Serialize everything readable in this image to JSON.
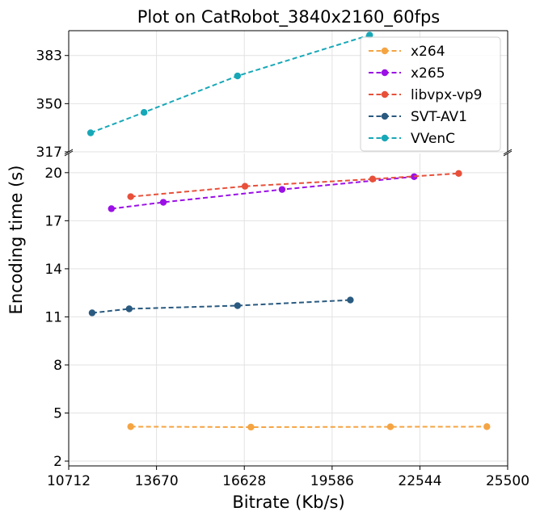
{
  "chart_data": {
    "type": "line",
    "title": "Plot on CatRobot_3840x2160_60fps",
    "xlabel": "Bitrate (Kb/s)",
    "ylabel": "Encoding time (s)",
    "xlim": [
      10712,
      25500
    ],
    "x_ticks": [
      10712,
      13670,
      16628,
      19586,
      22544,
      25500
    ],
    "y_axis_broken": true,
    "ylim_lower": [
      1.7,
      21.2
    ],
    "ylim_upper": [
      317,
      400
    ],
    "y_ticks_lower": [
      2,
      5,
      8,
      11,
      14,
      17,
      20
    ],
    "y_ticks_upper": [
      317,
      350,
      383
    ],
    "grid": true,
    "legend_position": "top-right",
    "series": [
      {
        "name": "x264",
        "color": "#f5a442",
        "x": [
          12800,
          16850,
          21550,
          24800
        ],
        "y": [
          4.15,
          4.12,
          4.14,
          4.15
        ]
      },
      {
        "name": "x265",
        "color": "#9b10e6",
        "x": [
          12150,
          13900,
          17900,
          22350
        ],
        "y": [
          17.75,
          18.15,
          18.95,
          19.75
        ]
      },
      {
        "name": "libvpx-vp9",
        "color": "#e8503a",
        "x": [
          12800,
          16650,
          20950,
          23850
        ],
        "y": [
          18.5,
          19.15,
          19.6,
          19.95
        ]
      },
      {
        "name": "SVT-AV1",
        "color": "#2a5a80",
        "x": [
          11500,
          12750,
          16400,
          20200
        ],
        "y": [
          11.25,
          11.5,
          11.7,
          12.05
        ]
      },
      {
        "name": "VVenC",
        "color": "#17a8b8",
        "x": [
          11450,
          13250,
          16400,
          20850
        ],
        "y": [
          330,
          344,
          369,
          397
        ]
      }
    ]
  }
}
